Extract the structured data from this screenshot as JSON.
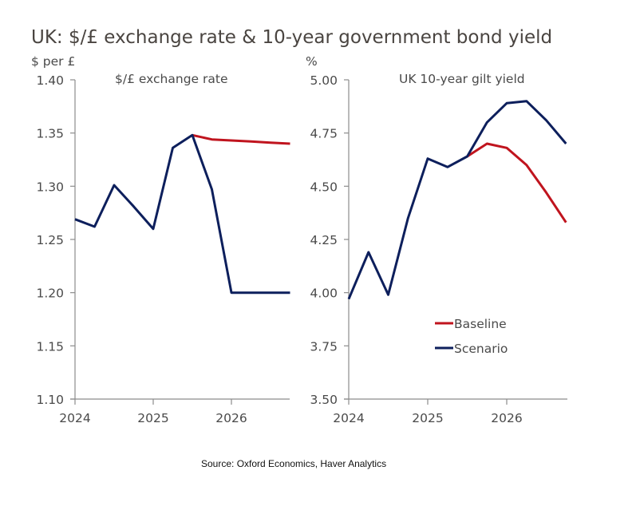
{
  "title": "UK: $/£ exchange rate & 10-year government bond yield",
  "source": "Source: Oxford Economics, Haver Analytics",
  "colors": {
    "baseline": "#c0141e",
    "scenario": "#0d1f5c",
    "axis": "#8c8c8c"
  },
  "legend": [
    {
      "name": "Baseline",
      "color": "#c0141e"
    },
    {
      "name": "Scenario",
      "color": "#0d1f5c"
    }
  ],
  "chart_data": [
    {
      "type": "line",
      "title": "$/£ exchange rate",
      "ylabel": "$ per £",
      "xlabel": "",
      "ylim": [
        1.1,
        1.4
      ],
      "yticks": [
        "1.40",
        "1.35",
        "1.30",
        "1.25",
        "1.20",
        "1.15",
        "1.10"
      ],
      "xticks": [
        "2024",
        "2025",
        "2026"
      ],
      "x": [
        "2024Q1",
        "2024Q2",
        "2024Q3",
        "2024Q4",
        "2025Q1",
        "2025Q2",
        "2025Q3",
        "2025Q4",
        "2026Q1",
        "2026Q2",
        "2026Q3",
        "2026Q4"
      ],
      "series": [
        {
          "name": "Scenario",
          "start_index": 0,
          "values": [
            1.269,
            1.262,
            1.301,
            1.281,
            1.26,
            1.336,
            1.348,
            1.297,
            1.2,
            1.2,
            1.2,
            1.2
          ]
        },
        {
          "name": "Baseline",
          "start_index": 6,
          "values": [
            1.348,
            1.344,
            1.343,
            1.342,
            1.341,
            1.34
          ]
        }
      ],
      "grid": false
    },
    {
      "type": "line",
      "title": "UK 10-year gilt yield",
      "ylabel": "%",
      "xlabel": "",
      "ylim": [
        3.5,
        5.0
      ],
      "yticks": [
        "5.00",
        "4.75",
        "4.50",
        "4.25",
        "4.00",
        "3.75",
        "3.50"
      ],
      "xticks": [
        "2024",
        "2025",
        "2026"
      ],
      "x": [
        "2024Q1",
        "2024Q2",
        "2024Q3",
        "2024Q4",
        "2025Q1",
        "2025Q2",
        "2025Q3",
        "2025Q4",
        "2026Q1",
        "2026Q2",
        "2026Q3",
        "2026Q4"
      ],
      "series": [
        {
          "name": "Scenario",
          "start_index": 0,
          "values": [
            3.97,
            4.19,
            3.99,
            4.35,
            4.63,
            4.59,
            4.64,
            4.8,
            4.89,
            4.9,
            4.81,
            4.7
          ]
        },
        {
          "name": "Baseline",
          "start_index": 6,
          "values": [
            4.64,
            4.7,
            4.68,
            4.6,
            4.47,
            4.33
          ]
        }
      ],
      "legend_position": "lower-middle",
      "grid": false
    }
  ]
}
